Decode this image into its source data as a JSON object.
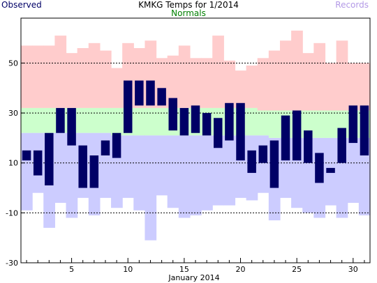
{
  "header": {
    "title": "KMKG Temps for 1/2014",
    "observed_label": "Observed",
    "normals_label": "Normals",
    "records_label": "Records"
  },
  "colors": {
    "observed": "#000066",
    "normals_band": "#ccffcc",
    "normals_label": "#008000",
    "record_high": "#ffcccc",
    "record_low": "#ccccff",
    "records_label": "#b399e6",
    "gridline": "#000000"
  },
  "chart_data": {
    "type": "bar",
    "title": "KMKG Temps for 1/2014",
    "xlabel": "January 2014",
    "ylabel": "",
    "ylim": [
      -30,
      68
    ],
    "yticks": [
      -30,
      -10,
      10,
      30,
      50
    ],
    "xticks": [
      5,
      10,
      15,
      20,
      25,
      30
    ],
    "grid_y": [
      -10,
      10,
      30,
      50
    ],
    "days": [
      1,
      2,
      3,
      4,
      5,
      6,
      7,
      8,
      9,
      10,
      11,
      12,
      13,
      14,
      15,
      16,
      17,
      18,
      19,
      20,
      21,
      22,
      23,
      24,
      25,
      26,
      27,
      28,
      29,
      30,
      31
    ],
    "record_high": [
      57,
      57,
      57,
      61,
      54,
      56,
      58,
      55,
      48,
      58,
      56,
      59,
      52,
      53,
      57,
      52,
      52,
      61,
      51,
      47,
      49,
      52,
      55,
      59,
      63,
      54,
      58,
      50,
      59,
      50,
      50
    ],
    "normal_high": [
      32,
      32,
      32,
      32,
      32,
      32,
      32,
      32,
      32,
      32,
      32,
      32,
      32,
      32,
      32,
      32,
      32,
      32,
      32,
      32,
      32,
      31,
      31,
      31,
      31,
      31,
      31,
      31,
      31,
      31,
      31
    ],
    "normal_low": [
      22,
      22,
      22,
      22,
      22,
      22,
      22,
      22,
      21,
      21,
      21,
      21,
      21,
      21,
      21,
      21,
      21,
      21,
      21,
      21,
      21,
      21,
      20,
      20,
      20,
      20,
      20,
      20,
      20,
      20,
      20
    ],
    "record_low": [
      -9,
      -2,
      -16,
      -6,
      -12,
      -4,
      -11,
      -4,
      -8,
      -4,
      -9,
      -21,
      -3,
      -8,
      -12,
      -11,
      -9,
      -7,
      -7,
      -4,
      -5,
      -2,
      -13,
      -4,
      -8,
      -10,
      -12,
      -7,
      -12,
      -6,
      -11
    ],
    "observed_high": [
      15,
      15,
      22,
      32,
      32,
      17,
      13,
      19,
      22,
      43,
      43,
      43,
      40,
      36,
      32,
      33,
      30,
      28,
      34,
      34,
      15,
      17,
      19,
      29,
      31,
      23,
      14,
      8,
      24,
      33,
      33
    ],
    "observed_low": [
      11,
      5,
      1,
      22,
      17,
      0,
      0,
      13,
      12,
      22,
      33,
      33,
      33,
      23,
      21,
      22,
      21,
      16,
      19,
      11,
      6,
      10,
      0,
      11,
      11,
      10,
      2,
      6,
      10,
      18,
      13
    ]
  }
}
